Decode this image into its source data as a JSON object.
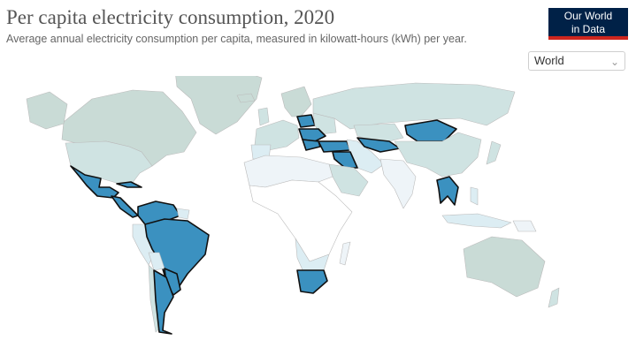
{
  "header": {
    "title": "Per capita electricity consumption, 2020",
    "subtitle": "Average annual electricity consumption per capita, measured in kilowatt-hours (kWh) per year."
  },
  "logo": {
    "line1": "Our World",
    "line2": "in Data",
    "background": "#002147",
    "accent": "#ce261e"
  },
  "region_selector": {
    "selected": "World",
    "icon": "chevron-down-icon"
  },
  "map": {
    "colors": {
      "ocean": "#ffffff",
      "highlight": "#3b91c0",
      "highlight_border": "#111111",
      "very_high": "#c9dbd6",
      "high": "#cfe3e2",
      "medium": "#dcedf3",
      "low": "#eef4f8",
      "no_data": "#ffffff",
      "borders": "#bbbbbb"
    },
    "highlighted_countries": [
      "Mexico",
      "Guatemala",
      "Honduras",
      "Nicaragua",
      "Panama",
      "Cuba",
      "Dominican Republic",
      "Colombia",
      "Venezuela",
      "Brazil",
      "Paraguay",
      "Argentina",
      "Uruguay",
      "South Africa",
      "Poland",
      "Hungary",
      "Romania",
      "Serbia",
      "Bulgaria",
      "Turkey",
      "Syria",
      "Iraq",
      "Uzbekistan",
      "Kyrgyzstan",
      "Mongolia",
      "Vietnam",
      "Thailand",
      "Cambodia"
    ]
  }
}
